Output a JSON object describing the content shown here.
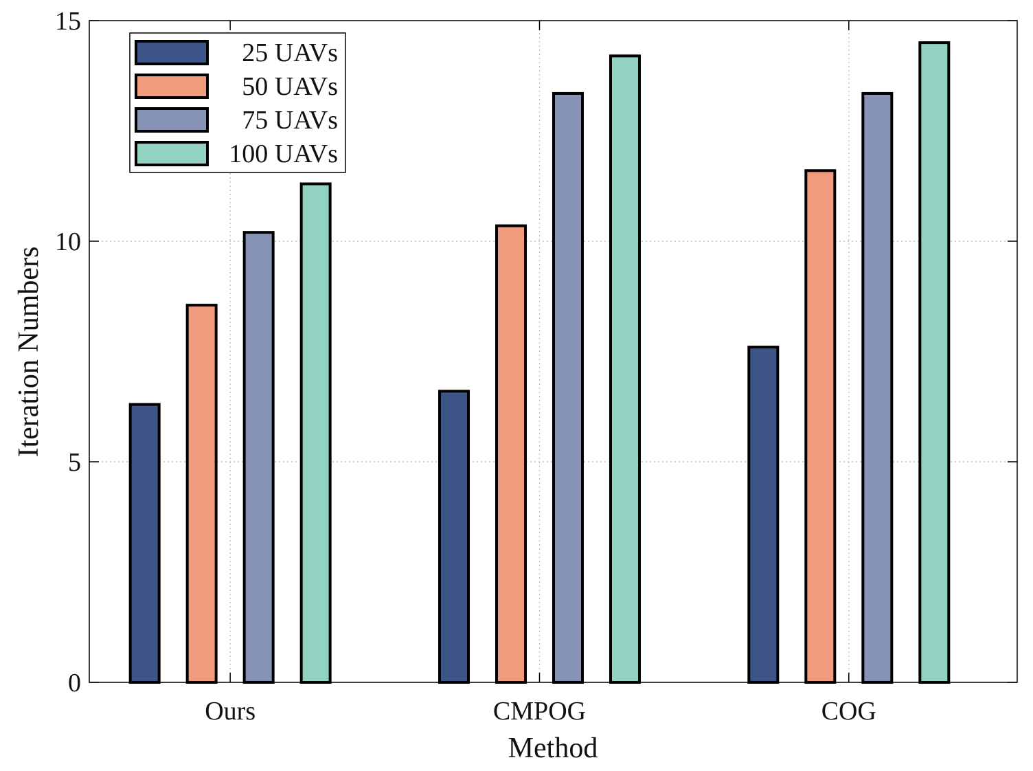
{
  "chart_data": {
    "type": "bar",
    "title": "",
    "xlabel": "Method",
    "ylabel": "Iteration Numbers",
    "categories": [
      "Ours",
      "CMPOG",
      "COG"
    ],
    "ylim": [
      0,
      15
    ],
    "yticks": [
      0,
      5,
      10,
      15
    ],
    "grid": true,
    "legend_position": "top-left",
    "series": [
      {
        "name": "25 UAVs",
        "color": "#3d5487",
        "values": [
          6.3,
          6.6,
          7.6
        ]
      },
      {
        "name": "50 UAVs",
        "color": "#f19b7e",
        "values": [
          8.55,
          10.35,
          11.6
        ]
      },
      {
        "name": "75 UAVs",
        "color": "#8793b4",
        "values": [
          10.2,
          13.35,
          13.35
        ]
      },
      {
        "name": "100 UAVs",
        "color": "#92d2c1",
        "values": [
          11.3,
          14.2,
          14.5
        ]
      }
    ]
  }
}
